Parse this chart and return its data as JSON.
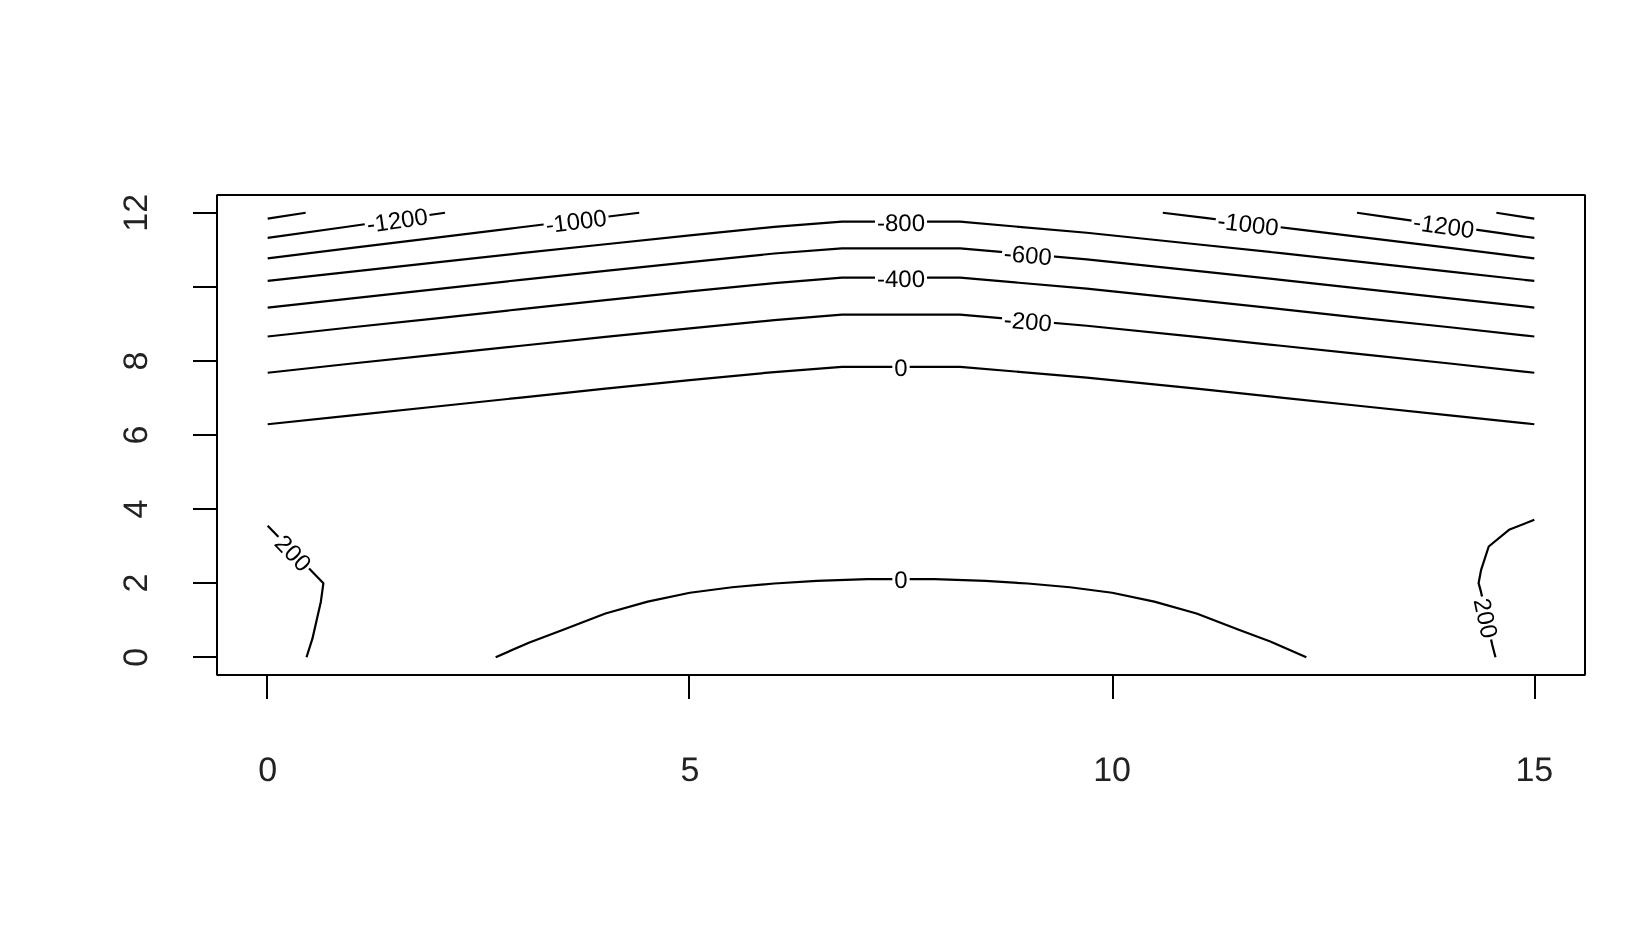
{
  "chart_data": {
    "type": "line",
    "xlim": [
      -0.6,
      15.6
    ],
    "ylim": [
      -0.48,
      12.48
    ],
    "xticks": [
      0,
      5,
      10,
      15
    ],
    "yticks": [
      0,
      2,
      4,
      6,
      8,
      {
        "value": 10,
        "label": null
      },
      12
    ],
    "grid": false,
    "line_style": "solid",
    "series": [
      {
        "name": "0",
        "color": "#000000",
        "x": [
          0,
          1,
          2,
          3,
          4,
          5,
          6,
          6.8,
          8.2,
          9.7,
          11,
          12,
          13,
          14,
          15
        ],
        "values": [
          6.29,
          6.53,
          6.77,
          7.01,
          7.25,
          7.48,
          7.7,
          7.84,
          7.84,
          7.55,
          7.25,
          7.01,
          6.77,
          6.53,
          6.29
        ]
      },
      {
        "name": "-200",
        "color": "#000000",
        "x": [
          0,
          1,
          2,
          3,
          4,
          5,
          6,
          6.8,
          8.2,
          9.7,
          11,
          12,
          13,
          14,
          15
        ],
        "values": [
          7.68,
          7.93,
          8.17,
          8.41,
          8.65,
          8.88,
          9.1,
          9.25,
          9.25,
          8.95,
          8.65,
          8.41,
          8.17,
          7.93,
          7.68
        ]
      },
      {
        "name": "-400",
        "color": "#000000",
        "x": [
          0,
          1,
          2,
          3,
          4,
          5,
          6,
          6.8,
          8.2,
          9.7,
          11,
          12,
          13,
          14,
          15
        ],
        "values": [
          8.66,
          8.91,
          9.15,
          9.4,
          9.64,
          9.88,
          10.1,
          10.25,
          10.25,
          9.95,
          9.64,
          9.4,
          9.15,
          8.91,
          8.66
        ]
      },
      {
        "name": "-600",
        "color": "#000000",
        "x": [
          0,
          1,
          2,
          3,
          4,
          5,
          6,
          6.8,
          8.2,
          9.7,
          11,
          12,
          13,
          14,
          15
        ],
        "values": [
          9.44,
          9.69,
          9.94,
          10.19,
          10.43,
          10.67,
          10.9,
          11.04,
          11.04,
          10.74,
          10.43,
          10.19,
          9.94,
          9.69,
          9.44
        ]
      },
      {
        "name": "-800",
        "color": "#000000",
        "x": [
          0,
          1,
          2,
          3,
          4,
          5,
          6,
          6.8,
          8.2,
          9.7,
          11,
          12,
          13,
          14,
          15
        ],
        "values": [
          10.16,
          10.41,
          10.66,
          10.91,
          11.15,
          11.39,
          11.62,
          11.76,
          11.76,
          11.46,
          11.15,
          10.91,
          10.66,
          10.41,
          10.16
        ]
      },
      {
        "name": "-1000",
        "color": "#000000",
        "x": [
          0,
          1,
          2,
          3,
          4.4
        ],
        "values": [
          10.77,
          11.05,
          11.33,
          11.61,
          12
        ]
      },
      {
        "name": "-1000",
        "color": "#000000",
        "x": [
          10.6,
          11.1,
          12.2,
          13,
          14,
          15
        ],
        "values": [
          12,
          11.86,
          11.55,
          11.33,
          11.05,
          10.77
        ]
      },
      {
        "name": "-1200",
        "color": "#000000",
        "x": [
          0,
          0.9,
          2.1
        ],
        "values": [
          11.32,
          11.61,
          12
        ]
      },
      {
        "name": "-1200",
        "color": "#000000",
        "x": [
          12.9,
          13.3,
          14.6,
          15
        ],
        "values": [
          12,
          11.87,
          11.45,
          11.32
        ]
      },
      {
        "color": "#000000",
        "x": [
          0,
          0.45
        ],
        "values": [
          11.84,
          12
        ]
      },
      {
        "color": "#000000",
        "x": [
          14.55,
          15
        ],
        "values": [
          12,
          11.84
        ]
      },
      {
        "name": "0",
        "color": "#000000",
        "x": [
          2.7,
          3.1,
          3.5,
          4,
          4.5,
          5,
          5.5,
          6,
          6.5,
          7.1,
          7.9,
          8.5,
          9,
          9.5,
          10,
          10.5,
          11,
          11.5,
          11.9,
          12.3
        ],
        "values": [
          0,
          0.4,
          0.74,
          1.18,
          1.5,
          1.74,
          1.89,
          1.99,
          2.06,
          2.11,
          2.11,
          2.06,
          1.99,
          1.89,
          1.74,
          1.5,
          1.18,
          0.74,
          0.4,
          0
        ]
      },
      {
        "name": "200",
        "color": "#000000",
        "x": [
          0.46,
          0.53,
          0.58,
          0.63,
          0.66,
          0
        ],
        "values": [
          0,
          0.5,
          1,
          1.5,
          2,
          3.55
        ]
      },
      {
        "name": "200",
        "color": "#000000",
        "x": [
          14.54,
          14.5,
          14.37,
          14.34,
          14.37,
          14.46,
          14.7,
          15
        ],
        "values": [
          0,
          0.35,
          1.75,
          2,
          2.36,
          2.99,
          3.44,
          3.71
        ]
      }
    ]
  }
}
